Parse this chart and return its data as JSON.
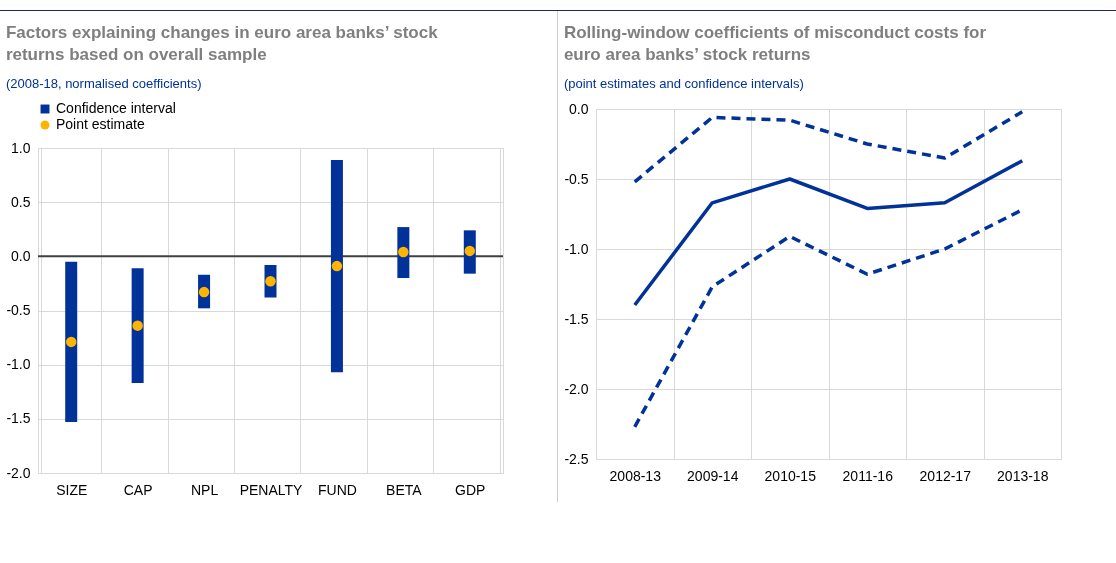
{
  "chart_data": [
    {
      "type": "bar",
      "title": "Factors explaining changes in euro area banks’ stock returns based on overall sample",
      "subtitle": "(2008-18, normalised coefficients)",
      "categories": [
        "SIZE",
        "CAP",
        "NPL",
        "PENALTY",
        "FUND",
        "BETA",
        "GDP"
      ],
      "series": [
        {
          "name": "Confidence interval",
          "type": "bar",
          "color": "#003299",
          "base": [
            -1.53,
            -1.17,
            -0.48,
            -0.38,
            -1.07,
            -0.2,
            -0.16
          ],
          "values": [
            1.48,
            1.06,
            0.31,
            0.3,
            1.96,
            0.47,
            0.4
          ]
        },
        {
          "name": "Point estimate",
          "type": "scatter",
          "color": "#ffb400",
          "marker": "circle",
          "values": [
            -0.79,
            -0.64,
            -0.33,
            -0.23,
            -0.09,
            0.04,
            0.05
          ]
        }
      ],
      "ylim": [
        -2,
        1
      ],
      "yticks": [
        {
          "value": -2,
          "label": "-2.0"
        },
        {
          "value": -1.5,
          "label": "-1.5"
        },
        {
          "value": -1,
          "label": "-1.0"
        },
        {
          "value": -0.5,
          "label": "-0.5"
        },
        {
          "value": 0,
          "label": "0.0"
        },
        {
          "value": 0.5,
          "label": "0.5"
        },
        {
          "value": 1,
          "label": "1.0"
        }
      ],
      "ref_lines": [
        {
          "axis": "y",
          "value": 0,
          "color": "#404040"
        }
      ],
      "grid": true,
      "legend": "top left"
    },
    {
      "type": "line",
      "title": "Rolling-window coefficients of misconduct costs for euro area banks’ stock returns",
      "subtitle": "(point estimates and confidence intervals)",
      "categories": [
        "2008-13",
        "2009-14",
        "2010-15",
        "2011-16",
        "2012-17",
        "2013-18"
      ],
      "series": [
        {
          "color": "#003299",
          "line_style": "dashed",
          "values": [
            -0.52,
            -0.06,
            -0.08,
            -0.25,
            -0.35,
            -0.02
          ]
        },
        {
          "color": "#003299",
          "line_style": "solid",
          "values": [
            -1.4,
            -0.67,
            -0.5,
            -0.71,
            -0.67,
            -0.37
          ]
        },
        {
          "color": "#003299",
          "line_style": "dashed",
          "values": [
            -2.27,
            -1.27,
            -0.91,
            -1.18,
            -1.0,
            -0.72
          ]
        }
      ],
      "ylim": [
        -2.5,
        0
      ],
      "yticks": [
        {
          "value": -2.5,
          "label": "-2.5"
        },
        {
          "value": -2,
          "label": "-2.0"
        },
        {
          "value": -1.5,
          "label": "-1.5"
        },
        {
          "value": -1,
          "label": "-1.0"
        },
        {
          "value": -0.5,
          "label": "-0.5"
        },
        {
          "value": 0,
          "label": "0.0"
        }
      ],
      "grid": true,
      "legend": false
    }
  ]
}
